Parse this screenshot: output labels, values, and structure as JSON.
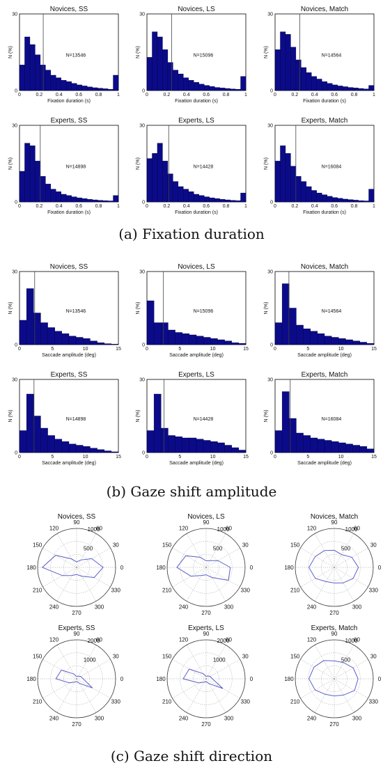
{
  "panels": {
    "a": {
      "caption": "(a)  Fixation duration",
      "charts": [
        {
          "title": "Novices, SS",
          "xlabel": "Fixation duration (s)",
          "ylabel": "N (%)",
          "n": "N=13546",
          "mean": 0.24,
          "values": [
            10,
            21,
            18,
            14,
            10,
            8,
            6,
            5,
            4,
            3.5,
            2.8,
            2.2,
            1.8,
            1.4,
            1.1,
            0.9,
            0.7,
            0.5,
            6
          ]
        },
        {
          "title": "Novices, LS",
          "xlabel": "Fixation duration (s)",
          "ylabel": "N (%)",
          "n": "N=15096",
          "mean": 0.25,
          "values": [
            13,
            23,
            21,
            16,
            11,
            8,
            6.5,
            5,
            4,
            3.2,
            2.5,
            2,
            1.6,
            1.2,
            1,
            0.8,
            0.6,
            0.5,
            5.5
          ]
        },
        {
          "title": "Novices, Match",
          "xlabel": "Fixation duration (s)",
          "ylabel": "N (%)",
          "n": "N=14564",
          "mean": 0.25,
          "values": [
            16,
            23,
            22,
            17,
            12,
            9,
            7,
            5.5,
            4.5,
            3.5,
            2.8,
            2.2,
            1.8,
            1.5,
            1.2,
            1,
            0.8,
            0.6,
            2
          ]
        },
        {
          "title": "Experts, SS",
          "xlabel": "Fixation duration (s)",
          "ylabel": "N (%)",
          "n": "N=14898",
          "mean": 0.21,
          "values": [
            12,
            23,
            22,
            16,
            10,
            7,
            5,
            4,
            3,
            2.5,
            2,
            1.6,
            1.3,
            1,
            0.8,
            0.6,
            0.5,
            0.4,
            2.5
          ]
        },
        {
          "title": "Experts, LS",
          "xlabel": "Fixation duration (s)",
          "ylabel": "N (%)",
          "n": "N=14428",
          "mean": 0.22,
          "values": [
            17,
            19,
            23,
            16,
            11,
            8,
            6,
            5,
            4,
            3,
            2.5,
            2,
            1.6,
            1.3,
            1,
            0.8,
            0.6,
            0.5,
            3.5
          ]
        },
        {
          "title": "Experts, Match",
          "xlabel": "Fixation duration (s)",
          "ylabel": "N (%)",
          "n": "N=16084",
          "mean": 0.21,
          "values": [
            16,
            22,
            19,
            14,
            10,
            8,
            6,
            4.5,
            3.5,
            2.8,
            2.2,
            1.7,
            1.4,
            1.1,
            0.9,
            0.7,
            0.5,
            0.4,
            5
          ]
        }
      ],
      "xlim": [
        0,
        1
      ],
      "ylim": [
        0,
        30
      ],
      "xticks": [
        "0",
        "0.2",
        "0.4",
        "0.6",
        "0.8",
        "1"
      ],
      "yticks": [
        "0",
        "30"
      ]
    },
    "b": {
      "caption": "(b)  Gaze shift amplitude",
      "charts": [
        {
          "title": "Novices, SS",
          "xlabel": "Saccade amplitude (deg)",
          "ylabel": "N (%)",
          "n": "N=13546",
          "mean": 2.3,
          "values": [
            10,
            23,
            13,
            9,
            7,
            5.5,
            4.5,
            3.5,
            3,
            2.5,
            1.5,
            0.8,
            0.4,
            0.2
          ]
        },
        {
          "title": "Novices, LS",
          "xlabel": "Saccade amplitude (deg)",
          "ylabel": "N (%)",
          "n": "N=15096",
          "mean": 2.5,
          "values": [
            18,
            9,
            9,
            6,
            5,
            4.5,
            4,
            3.5,
            3,
            2.5,
            2,
            1.5,
            0.8,
            0.5
          ]
        },
        {
          "title": "Novices, Match",
          "xlabel": "Saccade amplitude (deg)",
          "ylabel": "N (%)",
          "n": "N=14564",
          "mean": 2.1,
          "values": [
            9,
            25,
            15,
            8,
            6.5,
            5.5,
            4.5,
            3.5,
            3,
            2.5,
            2,
            1.5,
            1,
            0.5
          ]
        },
        {
          "title": "Experts, SS",
          "xlabel": "Saccade amplitude (deg)",
          "ylabel": "N (%)",
          "n": "N=14898",
          "mean": 2.2,
          "values": [
            9,
            24,
            15,
            10,
            7,
            5.5,
            4.5,
            3.5,
            3,
            2.5,
            1.8,
            1.2,
            0.7,
            0.3
          ]
        },
        {
          "title": "Experts, LS",
          "xlabel": "Saccade amplitude (deg)",
          "ylabel": "N (%)",
          "n": "N=14428",
          "mean": 2.6,
          "values": [
            9,
            24,
            10,
            7,
            6.5,
            6,
            6,
            5.5,
            5,
            4.5,
            4,
            3,
            2,
            1
          ]
        },
        {
          "title": "Experts, Match",
          "xlabel": "Saccade amplitude (deg)",
          "ylabel": "N (%)",
          "n": "N=16084",
          "mean": 2.3,
          "values": [
            9,
            25,
            14,
            8,
            7,
            6,
            5.5,
            5,
            4.5,
            4,
            3.5,
            3,
            2.5,
            1.5
          ]
        }
      ],
      "xlim": [
        0,
        15
      ],
      "ylim": [
        0,
        30
      ],
      "xticks": [
        "0",
        "5",
        "10",
        "15"
      ],
      "yticks": [
        "0",
        "30"
      ]
    },
    "c": {
      "caption": "(c)  Gaze shift direction",
      "angle_labels": [
        "0",
        "30",
        "60",
        "90",
        "120",
        "150",
        "180",
        "210",
        "240",
        "270",
        "300",
        "330"
      ],
      "charts": [
        {
          "title": "Novices, SS",
          "rmax": 1000,
          "rlabels": [
            "500",
            "1000"
          ],
          "radii": [
            680,
            450,
            220,
            140,
            250,
            620,
            880,
            420,
            240,
            180,
            260,
            520
          ]
        },
        {
          "title": "Novices, LS",
          "rmax": 1000,
          "rlabels": [
            "500",
            "1000"
          ],
          "radii": [
            620,
            350,
            200,
            170,
            300,
            600,
            750,
            450,
            240,
            190,
            300,
            660
          ]
        },
        {
          "title": "Novices, Match",
          "rmax": 1000,
          "rlabels": [
            "500",
            "1000"
          ],
          "radii": [
            620,
            520,
            380,
            440,
            500,
            560,
            650,
            560,
            420,
            400,
            460,
            560
          ]
        },
        {
          "title": "Experts, SS",
          "rmax": 2000,
          "rlabels": [
            "1000",
            "2000"
          ],
          "radii": [
            340,
            240,
            160,
            120,
            280,
            900,
            1060,
            420,
            200,
            140,
            260,
            940
          ]
        },
        {
          "title": "Experts, LS",
          "rmax": 2000,
          "rlabels": [
            "1000",
            "2000"
          ],
          "radii": [
            320,
            240,
            170,
            130,
            300,
            1000,
            1180,
            420,
            200,
            150,
            280,
            1000
          ]
        },
        {
          "title": "Experts, Match",
          "rmax": 1000,
          "rlabels": [
            "500",
            "1000"
          ],
          "radii": [
            610,
            560,
            480,
            460,
            540,
            600,
            650,
            570,
            460,
            440,
            480,
            600
          ]
        }
      ]
    }
  },
  "colors": {
    "bar_fill": "#0b0b8a",
    "bar_stroke": "#000033",
    "mean_line": "#444444",
    "polar_line": "#5b5fc7",
    "grid": "#999999"
  }
}
